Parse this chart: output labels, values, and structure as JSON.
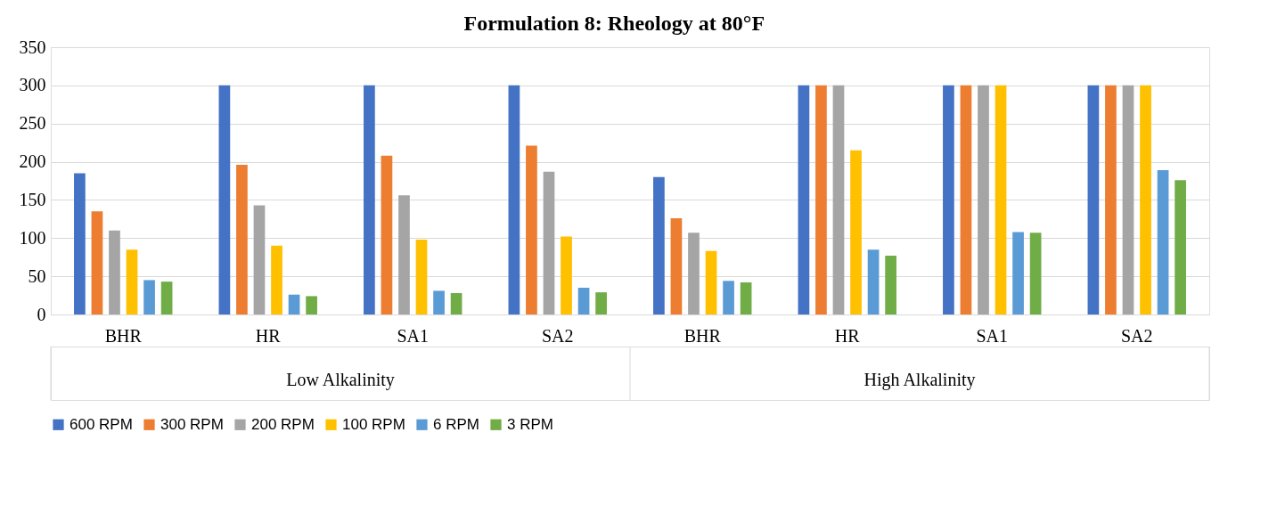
{
  "chart_data": {
    "type": "bar",
    "title": "Formulation 8: Rheology at 80°F",
    "categories": [
      "BHR",
      "HR",
      "SA1",
      "SA2",
      "BHR",
      "HR",
      "SA1",
      "SA2"
    ],
    "annotations": [
      "Low Alkalinity",
      "High Alkalinity"
    ],
    "series": [
      {
        "name": "600 RPM",
        "color": "#4472c4",
        "values": [
          185,
          300,
          300,
          300,
          180,
          300,
          300,
          300
        ]
      },
      {
        "name": "300 RPM",
        "color": "#ed7d31",
        "values": [
          135,
          196,
          208,
          221,
          126,
          300,
          300,
          300
        ]
      },
      {
        "name": "200 RPM",
        "color": "#a5a5a5",
        "values": [
          110,
          143,
          156,
          187,
          107,
          300,
          300,
          300
        ]
      },
      {
        "name": "100 RPM",
        "color": "#ffc000",
        "values": [
          85,
          90,
          98,
          102,
          83,
          215,
          300,
          300
        ]
      },
      {
        "name": "6 RPM",
        "color": "#5b9bd5",
        "values": [
          45,
          26,
          31,
          35,
          44,
          85,
          108,
          189
        ]
      },
      {
        "name": "3 RPM",
        "color": "#70ad47",
        "values": [
          43,
          24,
          28,
          29,
          42,
          77,
          107,
          176
        ]
      }
    ],
    "ylim": [
      0,
      350
    ],
    "yticks": [
      0,
      50,
      100,
      150,
      200,
      250,
      300,
      350
    ],
    "grid": "y",
    "legend": "bottom"
  }
}
